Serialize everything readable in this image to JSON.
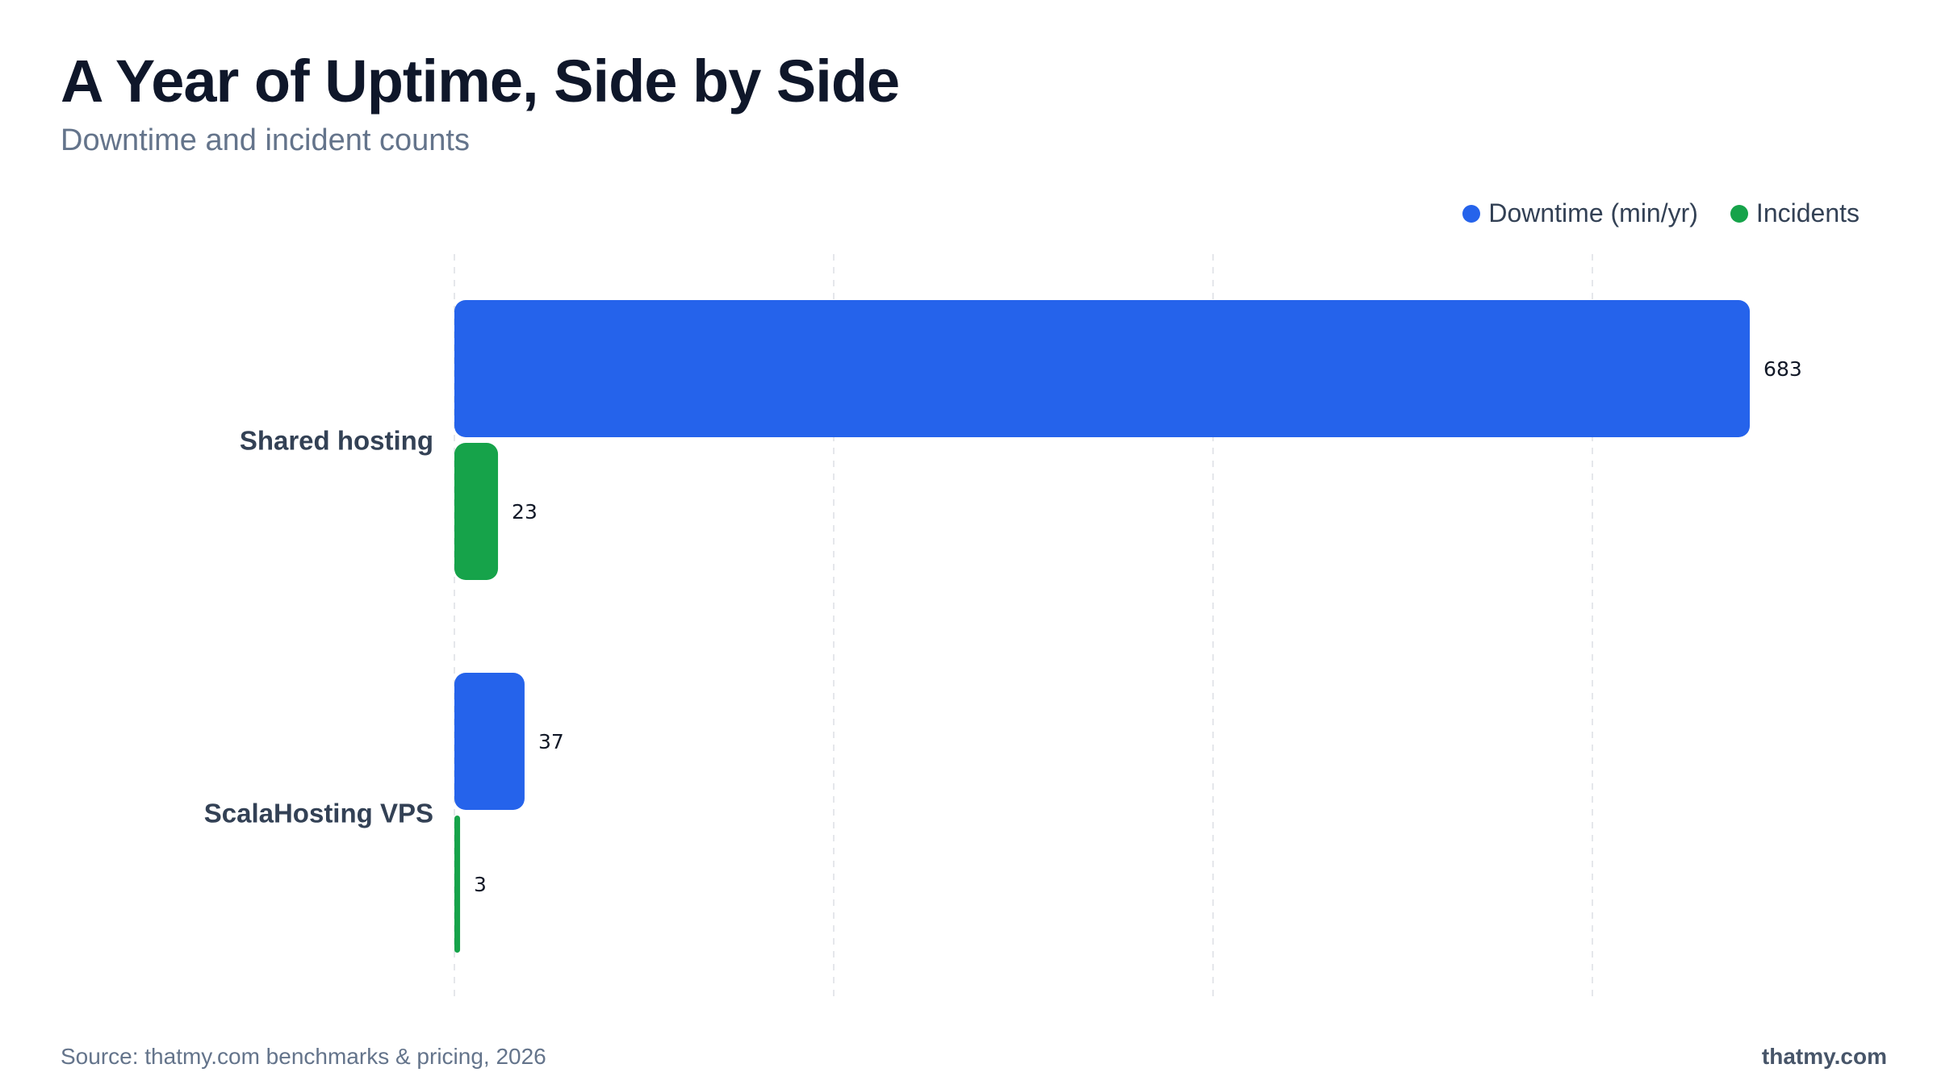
{
  "header": {
    "title": "A Year of Uptime, Side by Side",
    "subtitle": "Downtime and incident counts"
  },
  "footer": {
    "source": "Source: thatmy.com benchmarks & pricing, 2026",
    "brand": "thatmy.com"
  },
  "colors": {
    "downtime": "#2563eb",
    "incidents": "#16a34a",
    "grid": "#e5e7eb",
    "category_label": "#334155",
    "value_label": "#111827"
  },
  "chart_data": {
    "type": "bar",
    "orientation": "horizontal",
    "categories": [
      "Shared hosting",
      "ScalaHosting VPS"
    ],
    "series": [
      {
        "name": "Downtime (min/yr)",
        "values": [
          683,
          37
        ]
      },
      {
        "name": "Incidents",
        "values": [
          23,
          3
        ]
      }
    ],
    "xlim": [
      0,
      800
    ],
    "grid": "vertical-dashed",
    "legend": "top-right",
    "data_labels": true
  }
}
